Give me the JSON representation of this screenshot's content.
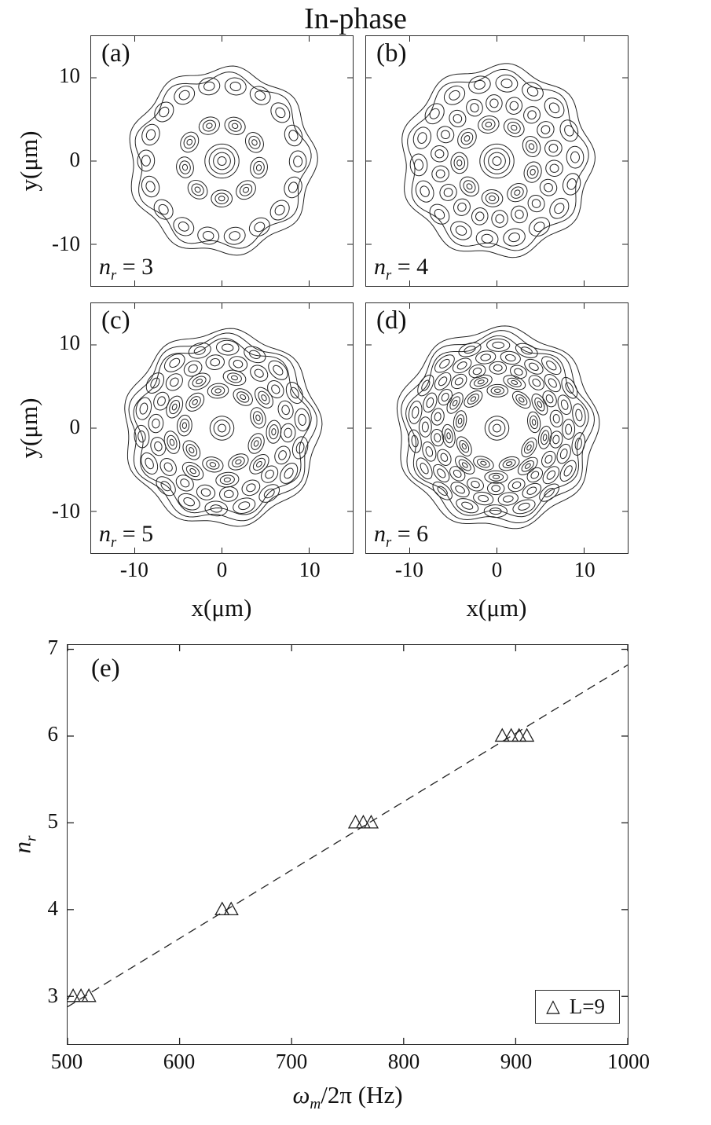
{
  "figure": {
    "title": "In-phase",
    "line_color": "#222222",
    "background": "#ffffff"
  },
  "chart_data": [
    {
      "type": "contour",
      "description": "Contour patterns of in-phase transverse modes with 9-fold angular symmetry and increasing radial order",
      "angular_symmetry": 9,
      "xlabel": "x(μm)",
      "ylabel": "y(μm)",
      "xlim": [
        -15,
        15
      ],
      "ylim": [
        -15,
        15
      ],
      "x_ticks": [
        -10,
        0,
        10
      ],
      "y_ticks": [
        10,
        0,
        -10
      ],
      "subplots": [
        {
          "label": "(a)",
          "var": "n",
          "sub": "r",
          "eq": " = 3",
          "radial_number": 3
        },
        {
          "label": "(b)",
          "var": "n",
          "sub": "r",
          "eq": " = 4",
          "radial_number": 4
        },
        {
          "label": "(c)",
          "var": "n",
          "sub": "r",
          "eq": " = 5",
          "radial_number": 5
        },
        {
          "label": "(d)",
          "var": "n",
          "sub": "r",
          "eq": " = 6",
          "radial_number": 6
        }
      ]
    },
    {
      "type": "scatter",
      "panel_label": "(e)",
      "xlabel_parts": {
        "sym": "ω",
        "sub": "m",
        "rest": "/2π",
        "unit": " (Hz)"
      },
      "ylabel_parts": {
        "var": "n",
        "sub": "r"
      },
      "xlim": [
        500,
        1000
      ],
      "ylim": [
        2.45,
        7.05
      ],
      "x_ticks": [
        500,
        600,
        700,
        800,
        900,
        1000
      ],
      "y_ticks": [
        3,
        4,
        5,
        6,
        7
      ],
      "series": [
        {
          "name": "L=9",
          "marker": "open-triangle",
          "points": [
            [
              505,
              3
            ],
            [
              512,
              3
            ],
            [
              519,
              3
            ],
            [
              638,
              4
            ],
            [
              646,
              4
            ],
            [
              757,
              5
            ],
            [
              764,
              5
            ],
            [
              771,
              5
            ],
            [
              888,
              6
            ],
            [
              896,
              6
            ],
            [
              903,
              6
            ],
            [
              910,
              6
            ]
          ]
        }
      ],
      "fit_line": {
        "style": "dashed",
        "x": [
          500,
          1000
        ],
        "y": [
          2.88,
          6.82
        ]
      },
      "legend": {
        "marker_glyph": "△",
        "label": "L=9",
        "position": "lower-right"
      }
    }
  ]
}
